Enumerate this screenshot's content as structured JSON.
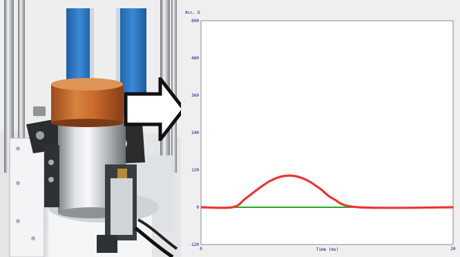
{
  "colors": {
    "curve": "#ee3333",
    "baseline": "#22aa22",
    "axis_text": "#000080",
    "blue_frame": "#2d78c6",
    "orange_sample": "#c96a2c"
  },
  "icons": {
    "direction_arrow": "right-arrow-icon"
  },
  "chart_data": {
    "type": "line",
    "title": "",
    "xlabel": "Time (ms)",
    "ylabel": "Acc. G",
    "xlim": [
      0,
      20
    ],
    "ylim": [
      -120,
      600
    ],
    "x_ticks": [
      "0",
      "20"
    ],
    "y_ticks": [
      "600",
      "480",
      "360",
      "240",
      "120",
      "0",
      "-120"
    ],
    "grid": false,
    "legend": "none",
    "series": [
      {
        "values": [
          {
            "x": 0,
            "y": 0
          },
          {
            "x": 2.5,
            "y": 0
          },
          {
            "x": 3.5,
            "y": 27
          },
          {
            "x": 4.5,
            "y": 58
          },
          {
            "x": 5.5,
            "y": 85
          },
          {
            "x": 6.5,
            "y": 100
          },
          {
            "x": 7.5,
            "y": 100
          },
          {
            "x": 8.5,
            "y": 85
          },
          {
            "x": 9.5,
            "y": 58
          },
          {
            "x": 10.5,
            "y": 27
          },
          {
            "x": 12.5,
            "y": 0
          },
          {
            "x": 20,
            "y": 0
          }
        ]
      },
      {
        "values": [
          {
            "x": 2.5,
            "y": 0
          },
          {
            "x": 12.5,
            "y": 0
          }
        ]
      }
    ]
  }
}
